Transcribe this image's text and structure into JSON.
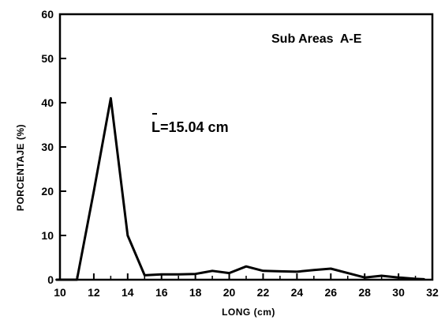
{
  "chart_data": {
    "type": "line",
    "title": "",
    "xlabel": "LONG (cm)",
    "ylabel": "PORCENTAJE (%)",
    "xlim": [
      10,
      32
    ],
    "ylim": [
      0,
      60
    ],
    "xticks": [
      10,
      12,
      14,
      16,
      18,
      20,
      22,
      24,
      26,
      28,
      30,
      32
    ],
    "yticks": [
      0,
      10,
      20,
      30,
      40,
      50,
      60
    ],
    "grid": false,
    "series": [
      {
        "name": "",
        "x": [
          9.8,
          10.5,
          11,
          12,
          13,
          14,
          15,
          16,
          17,
          18,
          19,
          20,
          21,
          22,
          23,
          24,
          25,
          26,
          27,
          28,
          29,
          30,
          31,
          31.5
        ],
        "y": [
          0,
          0,
          0,
          20,
          41,
          10,
          1,
          1.2,
          1.2,
          1.3,
          2,
          1.5,
          3,
          2,
          1.9,
          1.8,
          2.2,
          2.5,
          1.5,
          0.5,
          0.9,
          0.5,
          0.2,
          0.1
        ]
      }
    ],
    "annotations": [
      {
        "text": "Sub Areas  A-E"
      },
      {
        "text": "L=15.04 cm"
      }
    ]
  }
}
